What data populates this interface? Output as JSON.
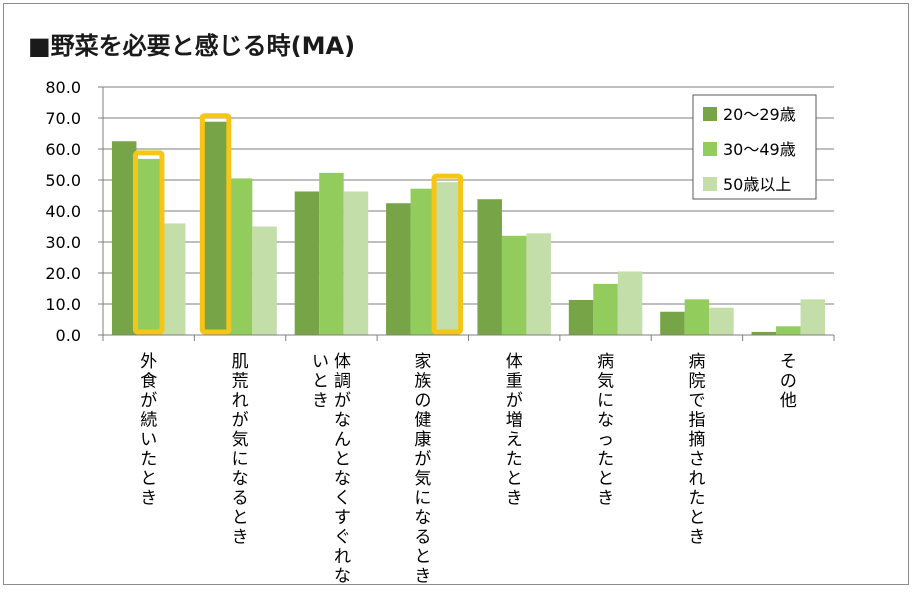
{
  "chart_data": {
    "type": "bar",
    "title": "■野菜を必要と感じる時(MA)",
    "xlabel": "",
    "ylabel": "",
    "ylim": [
      0,
      80
    ],
    "yticks": [
      0,
      10,
      20,
      30,
      40,
      50,
      60,
      70,
      80
    ],
    "ytick_labels": [
      "0.0",
      "10.0",
      "20.0",
      "30.0",
      "40.0",
      "50.0",
      "60.0",
      "70.0",
      "80.0"
    ],
    "grid": true,
    "legend_position": "top-right",
    "categories": [
      "外食が続いたとき",
      "肌荒れが気になるとき",
      "体調がなんとなくすぐれないとき",
      "家族の健康が気になるとき",
      "体重が増えたとき",
      "病気になったとき",
      "病院で指摘されたとき",
      "その他"
    ],
    "category_label_lines": [
      [
        "外食が続いたとき"
      ],
      [
        "肌荒れが気になるとき"
      ],
      [
        "体調がなんとなくすぐれな",
        "いとき"
      ],
      [
        "家族の健康が気になるとき"
      ],
      [
        "体重が増えたとき"
      ],
      [
        "病気になったとき"
      ],
      [
        "病院で指摘されたとき"
      ],
      [
        "その他"
      ]
    ],
    "series": [
      {
        "name": "20～29歳",
        "color": "#77a446",
        "values": [
          62.5,
          68.8,
          46.3,
          42.5,
          43.8,
          11.3,
          7.5,
          1.0
        ]
      },
      {
        "name": "30～49歳",
        "color": "#92cc5c",
        "values": [
          56.8,
          50.5,
          52.3,
          47.2,
          32.0,
          16.5,
          11.5,
          2.8
        ]
      },
      {
        "name": "50歳以上",
        "color": "#c4deaa",
        "values": [
          36.0,
          35.0,
          46.3,
          49.3,
          32.8,
          20.5,
          8.8,
          11.5
        ]
      }
    ],
    "highlights": [
      {
        "category_index": 0,
        "series_index": 1,
        "color": "#f5c518"
      },
      {
        "category_index": 1,
        "series_index": 0,
        "color": "#f5c518"
      },
      {
        "category_index": 3,
        "series_index": 2,
        "color": "#f5c518"
      }
    ]
  }
}
